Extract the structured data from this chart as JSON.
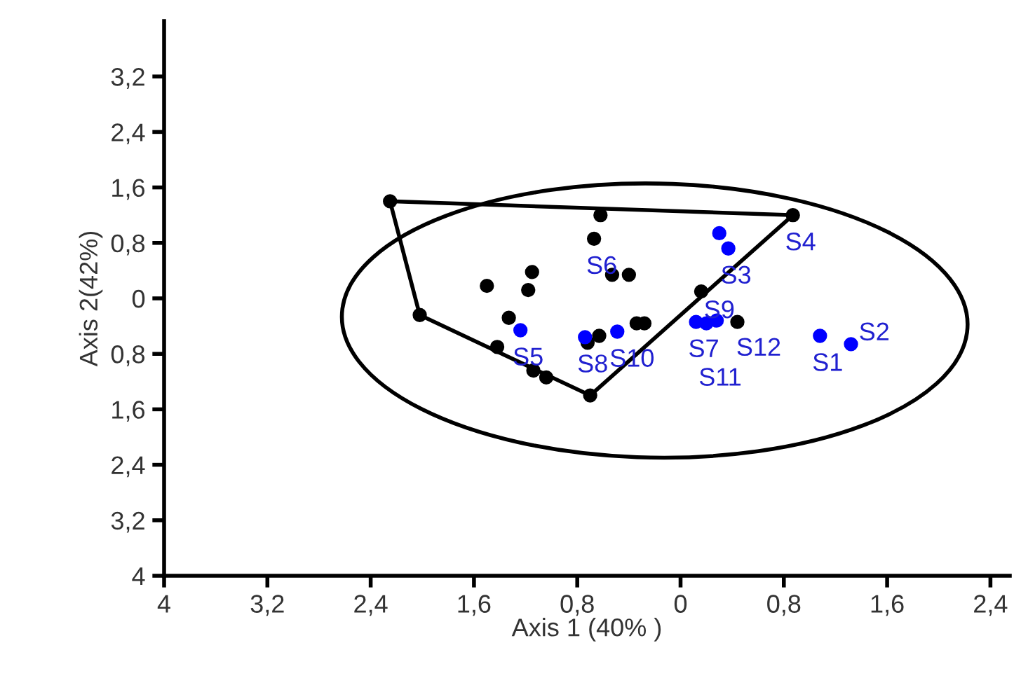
{
  "chart_data": {
    "type": "scatter",
    "xlabel": "Axis 1 (40% )",
    "ylabel": "Axis 2(42%)",
    "xlim": [
      -4,
      2.55
    ],
    "ylim": [
      -4,
      4
    ],
    "xticks": [
      {
        "value": -4,
        "label": "4"
      },
      {
        "value": -3.2,
        "label": "3,2"
      },
      {
        "value": -2.4,
        "label": "2,4"
      },
      {
        "value": -1.6,
        "label": "1,6"
      },
      {
        "value": -0.8,
        "label": "0,8"
      },
      0,
      {
        "value": 0.8,
        "label": "0,8"
      },
      {
        "value": 1.6,
        "label": "1,6"
      },
      {
        "value": 2.4,
        "label": "2,4"
      }
    ],
    "yticks": [
      {
        "value": -4,
        "label": "4"
      },
      {
        "value": -3.2,
        "label": "3,2"
      },
      {
        "value": -2.4,
        "label": "2,4"
      },
      {
        "value": -1.6,
        "label": "1,6"
      },
      {
        "value": -0.8,
        "label": "0,8"
      },
      0,
      {
        "value": 0.8,
        "label": "0,8"
      },
      {
        "value": 1.6,
        "label": "1,6"
      },
      {
        "value": 2.4,
        "label": "2,4"
      },
      {
        "value": 3.2,
        "label": "3,2"
      }
    ],
    "grid": false,
    "legend": false,
    "marker": "circle",
    "series": [
      {
        "color": "#000000",
        "x": [
          -2.25,
          -2.02,
          -0.62,
          -0.67,
          -0.53,
          -0.4,
          -1.5,
          -1.15,
          -1.18,
          -1.33,
          -1.42,
          -1.14,
          -1.04,
          -0.7,
          -0.72,
          -0.63,
          -0.34,
          -0.28,
          0.16,
          0.44,
          0.87
        ],
        "values": [
          1.4,
          -0.24,
          1.2,
          0.86,
          0.34,
          0.34,
          0.18,
          0.38,
          0.12,
          -0.28,
          -0.7,
          -1.04,
          -1.14,
          -1.4,
          -0.64,
          -0.54,
          -0.36,
          -0.36,
          0.1,
          -0.34,
          1.2
        ]
      },
      {
        "color": "#0000ff",
        "x": [
          0.3,
          0.37,
          1.08,
          1.32,
          -1.24,
          -0.74,
          -0.49,
          0.12,
          0.2,
          0.28
        ],
        "values": [
          0.94,
          0.72,
          -0.54,
          -0.66,
          -0.46,
          -0.56,
          -0.48,
          -0.34,
          -0.36,
          -0.32
        ]
      },
      {
        "type": "line",
        "marker": "none",
        "color": "#000000",
        "x": [
          -2.25,
          0.87
        ],
        "values": [
          1.4,
          1.2
        ]
      },
      {
        "type": "line",
        "marker": "none",
        "color": "#000000",
        "x": [
          -2.25,
          -2.02,
          -0.7,
          0.87
        ],
        "values": [
          1.4,
          -0.24,
          -1.4,
          1.2
        ]
      }
    ],
    "annotations": [
      {
        "text": "S1",
        "x": 1.08,
        "y": -0.54
      },
      {
        "text": "S2",
        "x": 1.32,
        "y": -0.66
      },
      {
        "text": "S3",
        "x": 0.37,
        "y": 0.72
      },
      {
        "text": "S4",
        "x": 0.87,
        "y": 1.2
      },
      {
        "text": "S5",
        "x": -1.24,
        "y": -0.46
      },
      {
        "text": "S6",
        "x": -0.67,
        "y": 0.86
      },
      {
        "text": "S7",
        "x": 0.12,
        "y": -0.34
      },
      {
        "text": "S8",
        "x": -0.74,
        "y": -0.56
      },
      {
        "text": "S9",
        "x": 0.12,
        "y": -0.34
      },
      {
        "text": "S10",
        "x": -0.49,
        "y": -0.48
      },
      {
        "text": "S11",
        "x": 0.2,
        "y": -0.36
      },
      {
        "text": "S12",
        "x": 0.28,
        "y": -0.32
      }
    ]
  }
}
